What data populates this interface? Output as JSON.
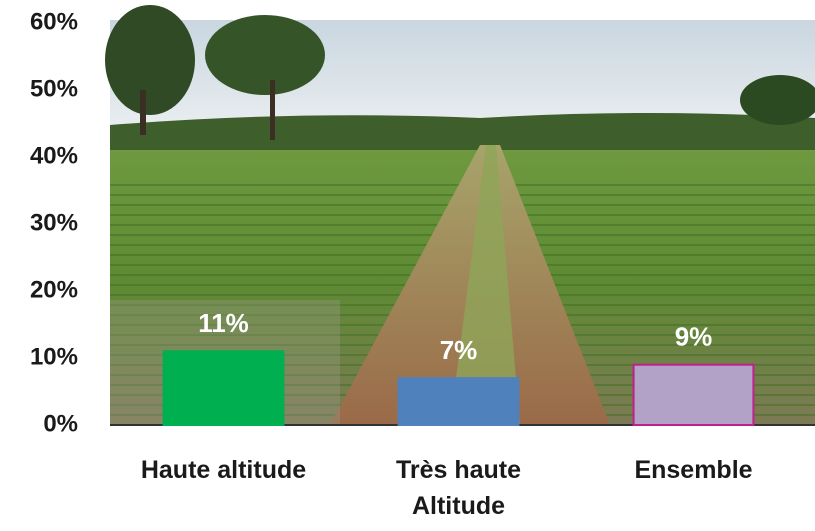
{
  "chart_data": {
    "type": "bar",
    "categories": [
      "Haute altitude",
      "Très haute Altitude",
      "Ensemble"
    ],
    "values": [
      11,
      7,
      9
    ],
    "value_labels": [
      "11%",
      "7%",
      "9%"
    ],
    "colors": [
      "#00b050",
      "#4f81bd",
      "#b3a2c7"
    ],
    "edge_colors": [
      "#00b050",
      "#4f81bd",
      "#c0208a"
    ],
    "ylim": [
      0,
      60
    ],
    "yticks": [
      {
        "value": 0,
        "label": "0%"
      },
      {
        "value": 10,
        "label": "10%"
      },
      {
        "value": 20,
        "label": "20%"
      },
      {
        "value": 30,
        "label": "30%"
      },
      {
        "value": 40,
        "label": "40%"
      },
      {
        "value": 50,
        "label": "50%"
      },
      {
        "value": 60,
        "label": "60%"
      }
    ],
    "grid": false
  }
}
